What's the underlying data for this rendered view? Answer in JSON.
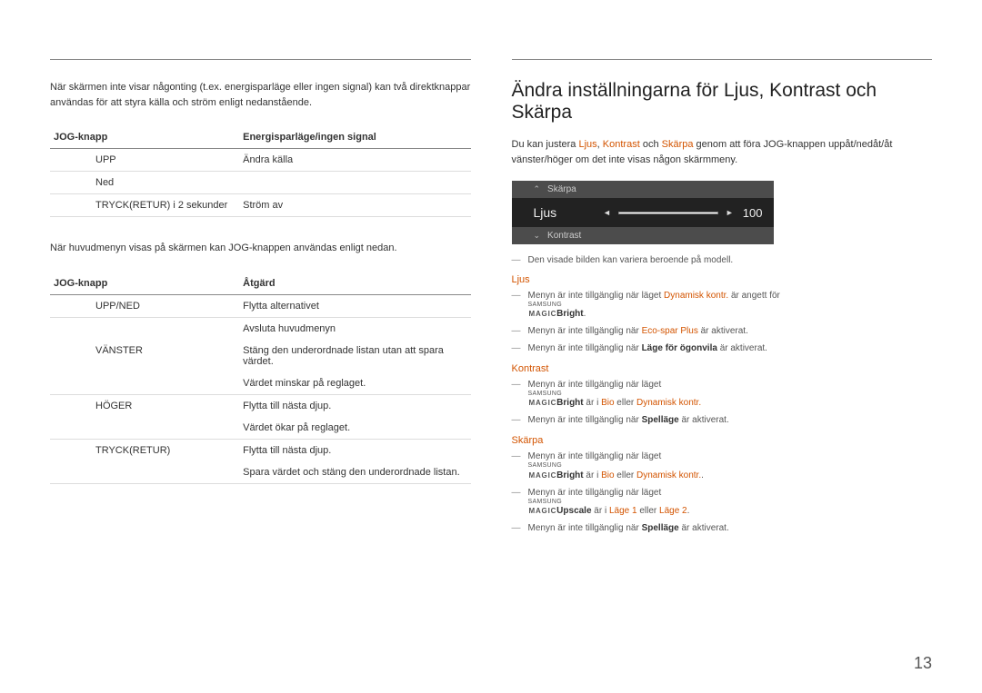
{
  "left": {
    "intro": "När skärmen inte visar någonting (t.ex. energisparläge eller ingen signal) kan två direktknappar användas för att styra källa och ström enligt nedanstående.",
    "table1": {
      "h1": "JOG-knapp",
      "h2": "Energisparläge/ingen signal",
      "rows": [
        {
          "c1": "UPP",
          "c2": "Ändra källa"
        },
        {
          "c1": "Ned",
          "c2": ""
        },
        {
          "c1": "TRYCK(RETUR) i 2 sekunder",
          "c2": "Ström av"
        }
      ]
    },
    "intro2": "När huvudmenyn visas på skärmen kan JOG-knappen användas enligt nedan.",
    "table2": {
      "h1": "JOG-knapp",
      "h2": "Åtgärd",
      "rows": [
        {
          "c1": "UPP/NED",
          "c2": "Flytta alternativet"
        },
        {
          "c1": "",
          "c2": "Avsluta huvudmenyn"
        },
        {
          "c1": "VÄNSTER",
          "c2": "Stäng den underordnade listan utan att spara värdet."
        },
        {
          "c1": "",
          "c2": "Värdet minskar på reglaget."
        },
        {
          "c1": "HÖGER",
          "c2": "Flytta till nästa djup."
        },
        {
          "c1": "",
          "c2": "Värdet ökar på reglaget."
        },
        {
          "c1": "TRYCK(RETUR)",
          "c2": "Flytta till nästa djup."
        },
        {
          "c1": "",
          "c2": "Spara värdet och stäng den underordnade listan."
        }
      ]
    }
  },
  "right": {
    "heading": "Ändra inställningarna för Ljus, Kontrast och Skärpa",
    "desc_pre": "Du kan justera ",
    "desc_terms": {
      "a": "Ljus",
      "b": "Kontrast",
      "c": "Skärpa"
    },
    "desc_mid1": ", ",
    "desc_mid2": " och ",
    "desc_post": " genom att föra JOG-knappen uppåt/nedåt/åt vänster/höger om det inte visas någon skärmmeny.",
    "osd": {
      "top": "Skärpa",
      "main": "Ljus",
      "value": "100",
      "bottom": "Kontrast"
    },
    "note1": "Den visade bilden kan variera beroende på modell.",
    "s1": {
      "title": "Ljus",
      "b1_pre": "Menyn är inte tillgänglig när läget ",
      "b1_term": "Dynamisk kontr.",
      "b1_mid": " är angett för ",
      "b1_brand": "Bright",
      "b1_post": ".",
      "b2_pre": "Menyn är inte tillgänglig när ",
      "b2_term": "Eco-spar Plus",
      "b2_post": " är aktiverat.",
      "b3_pre": "Menyn är inte tillgänglig när ",
      "b3_term": "Läge för ögonvila",
      "b3_post": " är aktiverat."
    },
    "s2": {
      "title": "Kontrast",
      "b1_pre": "Menyn är inte tillgänglig när läget ",
      "b1_brand": "Bright",
      "b1_mid": " är i ",
      "b1_t1": "Bio",
      "b1_or": " eller ",
      "b1_t2": "Dynamisk kontr.",
      "b2_pre": "Menyn är inte tillgänglig när ",
      "b2_term": "Spelläge",
      "b2_post": " är aktiverat."
    },
    "s3": {
      "title": "Skärpa",
      "b1_pre": "Menyn är inte tillgänglig när läget ",
      "b1_brand": "Bright",
      "b1_mid": " är i ",
      "b1_t1": "Bio",
      "b1_or": " eller ",
      "b1_t2": "Dynamisk kontr.",
      "b1_post": ".",
      "b2_pre": "Menyn är inte tillgänglig när läget ",
      "b2_brand": "Upscale",
      "b2_mid": " är i ",
      "b2_t1": "Läge 1",
      "b2_or": " eller ",
      "b2_t2": "Läge 2",
      "b2_post": ".",
      "b3_pre": "Menyn är inte tillgänglig när ",
      "b3_term": "Spelläge",
      "b3_post": " är aktiverat."
    }
  },
  "page": "13"
}
